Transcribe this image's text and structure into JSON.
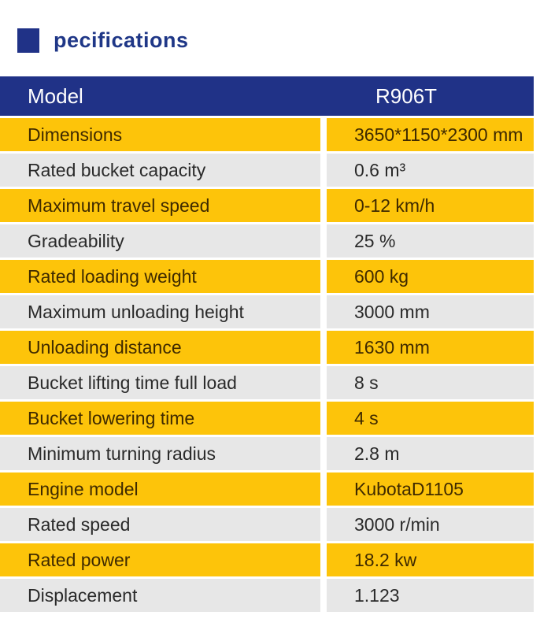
{
  "title": {
    "text": "pecifications"
  },
  "colors": {
    "header_bg": "#203287",
    "header_text": "#ffffff",
    "row_yellow_bg": "#fdc40a",
    "row_yellow_text": "#3f2a00",
    "row_gray_bg": "#e7e7e7",
    "row_gray_text": "#2a2a2a",
    "title_square": "#203287",
    "title_text": "#1f3787"
  },
  "table": {
    "header": {
      "label": "Model",
      "value": "R906T"
    },
    "rows": [
      {
        "label": "Dimensions",
        "value": "3650*1150*2300 mm"
      },
      {
        "label": "Rated bucket capacity",
        "value": "0.6 m³"
      },
      {
        "label": "Maximum travel speed",
        "value": "0-12 km/h"
      },
      {
        "label": "Gradeability",
        "value": "25 %"
      },
      {
        "label": "Rated loading weight",
        "value": "600 kg"
      },
      {
        "label": "Maximum unloading height",
        "value": "3000 mm"
      },
      {
        "label": "Unloading distance",
        "value": "1630 mm"
      },
      {
        "label": "Bucket lifting time full load",
        "value": "8 s"
      },
      {
        "label": "Bucket lowering time",
        "value": "4 s"
      },
      {
        "label": "Minimum turning radius",
        "value": "2.8 m"
      },
      {
        "label": "Engine model",
        "value": "KubotaD1105"
      },
      {
        "label": "Rated speed",
        "value": "3000 r/min"
      },
      {
        "label": "Rated power",
        "value": "18.2 kw"
      },
      {
        "label": "Displacement",
        "value": "1.123"
      }
    ]
  }
}
